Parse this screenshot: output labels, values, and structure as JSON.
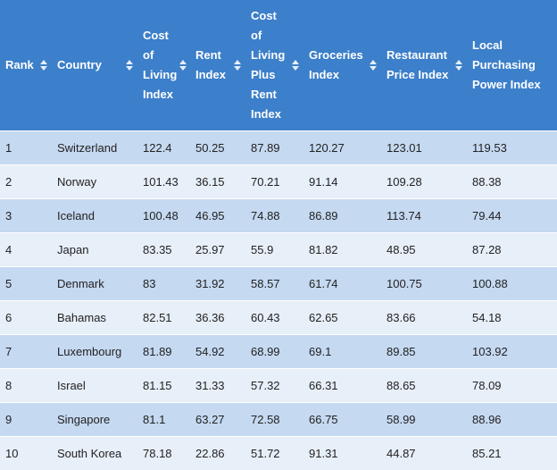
{
  "table": {
    "headers": [
      "Rank",
      "Country",
      "Cost of Living Index",
      "Rent Index",
      "Cost of Living Plus Rent Index",
      "Groceries Index",
      "Restaurant Price Index",
      "Local Purchasing Power Index"
    ],
    "header_bg": "#3c7fca",
    "row_colors": [
      "#c5d9f1",
      "#e7eff9"
    ],
    "rows": [
      [
        "1",
        "Switzerland",
        "122.4",
        "50.25",
        "87.89",
        "120.27",
        "123.01",
        "119.53"
      ],
      [
        "2",
        "Norway",
        "101.43",
        "36.15",
        "70.21",
        "91.14",
        "109.28",
        "88.38"
      ],
      [
        "3",
        "Iceland",
        "100.48",
        "46.95",
        "74.88",
        "86.89",
        "113.74",
        "79.44"
      ],
      [
        "4",
        "Japan",
        "83.35",
        "25.97",
        "55.9",
        "81.82",
        "48.95",
        "87.28"
      ],
      [
        "5",
        "Denmark",
        "83",
        "31.92",
        "58.57",
        "61.74",
        "100.75",
        "100.88"
      ],
      [
        "6",
        "Bahamas",
        "82.51",
        "36.36",
        "60.43",
        "62.65",
        "83.66",
        "54.18"
      ],
      [
        "7",
        "Luxembourg",
        "81.89",
        "54.92",
        "68.99",
        "69.1",
        "89.85",
        "103.92"
      ],
      [
        "8",
        "Israel",
        "81.15",
        "31.33",
        "57.32",
        "66.31",
        "88.65",
        "78.09"
      ],
      [
        "9",
        "Singapore",
        "81.1",
        "63.27",
        "72.58",
        "66.75",
        "58.99",
        "88.96"
      ],
      [
        "10",
        "South Korea",
        "78.18",
        "22.86",
        "51.72",
        "91.31",
        "44.87",
        "85.21"
      ]
    ]
  }
}
